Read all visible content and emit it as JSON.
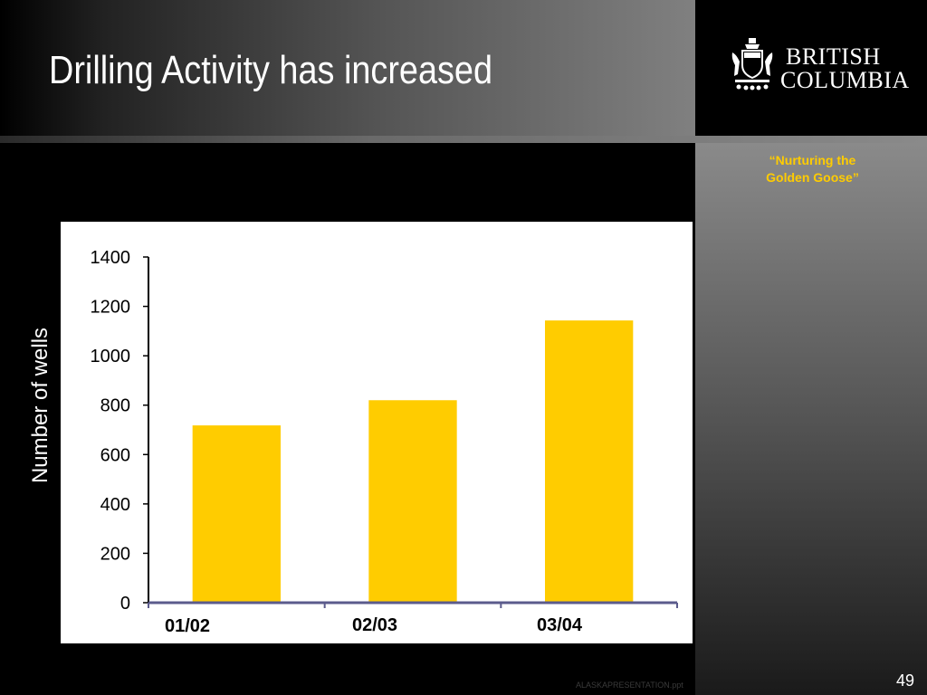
{
  "slide": {
    "title": "Drilling Activity has increased",
    "tagline": "“Nurturing the\nGolden Goose”",
    "footer_file": "ALASKAPRESENTATION.ppt",
    "page_number": "49"
  },
  "logo": {
    "line1": "BRITISH",
    "line2": "COLUMBIA",
    "crest_icon": "bc-coat-of-arms-icon"
  },
  "colors": {
    "bar": "#FFCC00",
    "tagline": "#FFCC00",
    "axis": "#5b5b8c"
  },
  "chart_data": {
    "type": "bar",
    "categories": [
      "01/02",
      "02/03",
      "03/04"
    ],
    "values": [
      718,
      820,
      1143
    ],
    "ylabel": "Number of wells",
    "xlabel": "",
    "ylim": [
      0,
      1400
    ],
    "yticks": [
      0,
      200,
      400,
      600,
      800,
      1000,
      1200,
      1400
    ],
    "grid": false,
    "legend": "none"
  }
}
